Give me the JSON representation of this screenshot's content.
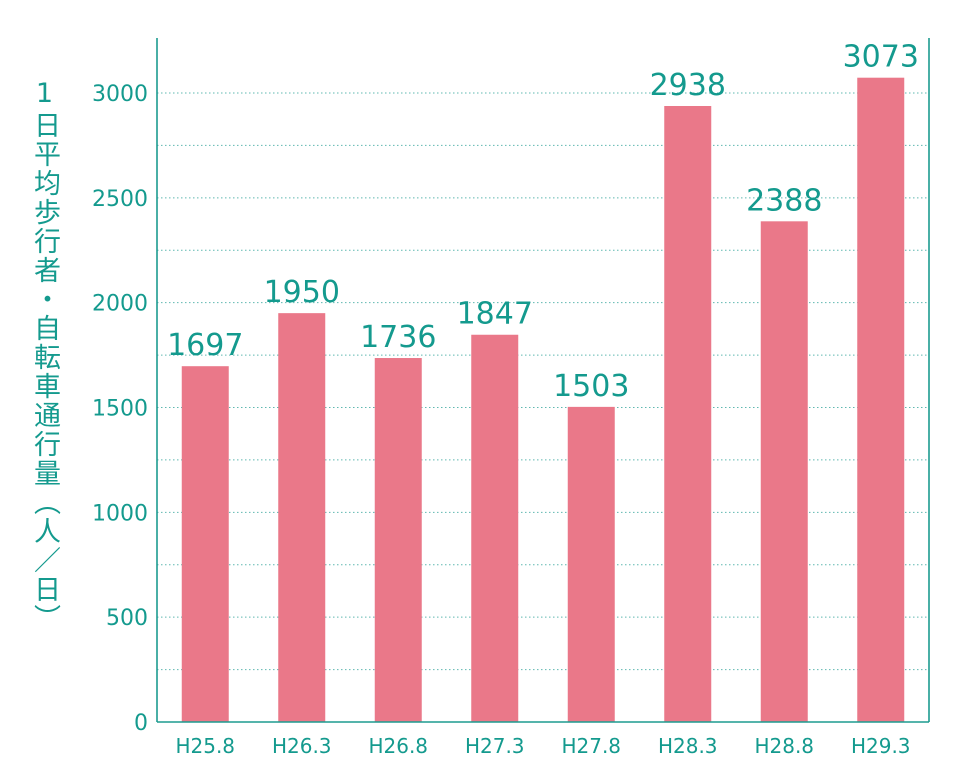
{
  "chart_data": {
    "type": "bar",
    "title": "",
    "xlabel": "",
    "ylabel": "1日平均歩行者・自転車通行量（人／日）",
    "categories": [
      "H25.8",
      "H26.3",
      "H26.8",
      "H27.3",
      "H27.8",
      "H28.3",
      "H28.8",
      "H29.3"
    ],
    "values": [
      1697,
      1950,
      1736,
      1847,
      1503,
      2938,
      2388,
      3073
    ],
    "data_labels": [
      "1697",
      "1950",
      "1736",
      "1847",
      "1503",
      "2938",
      "2388",
      "3073"
    ],
    "yticks": [
      0,
      500,
      1000,
      1500,
      2000,
      2500,
      3000
    ],
    "ytick_labels": [
      "0",
      "500",
      "1000",
      "1500",
      "2000",
      "2500",
      "3000"
    ],
    "ylim": [
      0,
      3000
    ],
    "grid": true,
    "legend": "none",
    "colors": {
      "bar": "#ea7889",
      "axis": "#1d9b8f",
      "text": "#149a8e",
      "grid": "#5fb8b0"
    }
  }
}
